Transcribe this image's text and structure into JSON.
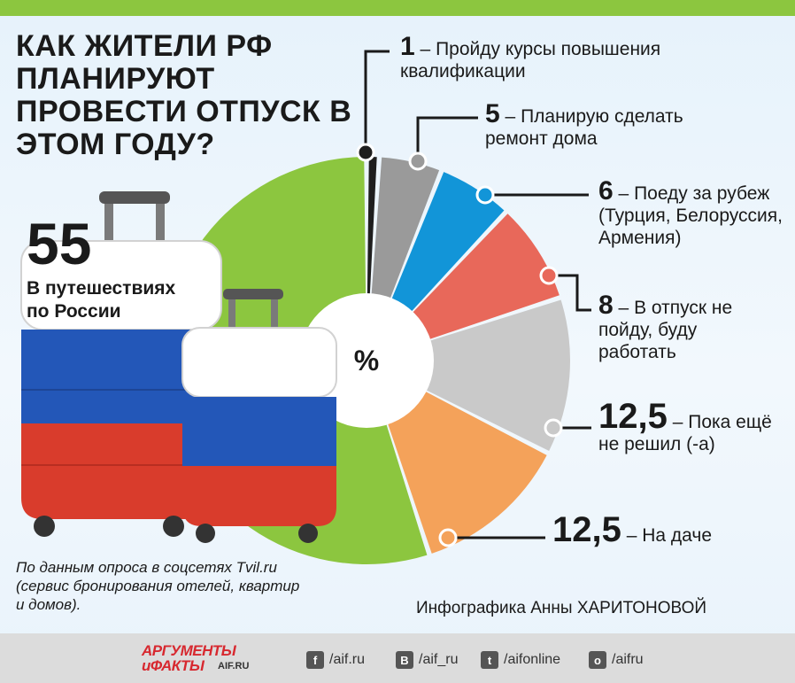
{
  "title": "КАК ЖИТЕЛИ РФ ПЛАНИРУЮТ ПРОВЕСТИ ОТПУСК В ЭТОМ ГОДУ?",
  "chart_data": {
    "type": "pie",
    "center_label": "%",
    "slices": [
      {
        "value": 1,
        "dash": "–",
        "label": "Пройду курсы повышения квалификации",
        "color": "#1e1e1e"
      },
      {
        "value": 5,
        "dash": "–",
        "label": "Планирую сделать ремонт дома",
        "color": "#9a9a9a"
      },
      {
        "value": 6,
        "dash": "–",
        "label": "Поеду за рубеж (Турция, Белоруссия, Армения)",
        "color": "#1295d8"
      },
      {
        "value": 8,
        "dash": "–",
        "label": "В отпуск не пойду, буду работать",
        "color": "#e8685a"
      },
      {
        "value": 12.5,
        "value_text": "12,5",
        "dash": "–",
        "label": "Пока ещё не решил (-а)",
        "color": "#c9c9c9"
      },
      {
        "value": 12.5,
        "value_text": "12,5",
        "dash": "–",
        "label": "На даче",
        "color": "#f4a25a"
      },
      {
        "value": 55,
        "label": "В путешествиях по России",
        "color": "#8cc63f"
      }
    ]
  },
  "source": "По данным опроса в соцсетях Tvil.ru (сервис бронирования отелей, квартир и домов).",
  "credit": "Инфографика Анны ХАРИТОНОВОЙ",
  "logo": {
    "line1": "АРГУМЕНТЫ",
    "line2": "иФАКТЫ",
    "site": "AIF.RU"
  },
  "social": [
    {
      "icon": "facebook-icon",
      "glyph": "f",
      "handle": "/aif.ru"
    },
    {
      "icon": "vk-icon",
      "glyph": "B",
      "handle": "/aif_ru"
    },
    {
      "icon": "twitter-icon",
      "glyph": "t",
      "handle": "/aifonline"
    },
    {
      "icon": "ok-icon",
      "glyph": "o",
      "handle": "/aifru"
    }
  ]
}
